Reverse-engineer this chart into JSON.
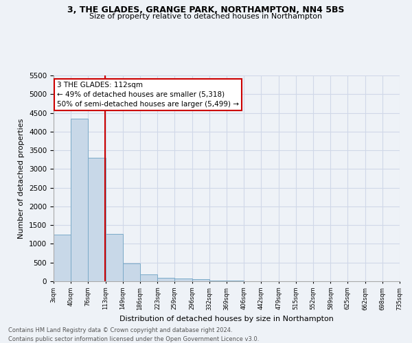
{
  "title1": "3, THE GLADES, GRANGE PARK, NORTHAMPTON, NN4 5BS",
  "title2": "Size of property relative to detached houses in Northampton",
  "xlabel": "Distribution of detached houses by size in Northampton",
  "ylabel": "Number of detached properties",
  "bin_edges": [
    3,
    40,
    76,
    113,
    149,
    186,
    223,
    259,
    296,
    332,
    369,
    406,
    442,
    479,
    515,
    552,
    589,
    625,
    662,
    698,
    735
  ],
  "bar_heights": [
    1250,
    4350,
    3300,
    1270,
    480,
    190,
    90,
    70,
    50,
    20,
    10,
    5,
    0,
    0,
    0,
    0,
    0,
    0,
    0,
    0
  ],
  "bar_color": "#c8d8e8",
  "bar_edge_color": "#7aaac8",
  "grid_color": "#d0d8e8",
  "property_size": 112,
  "vline_color": "#cc0000",
  "annotation_line1": "3 THE GLADES: 112sqm",
  "annotation_line2": "← 49% of detached houses are smaller (5,318)",
  "annotation_line3": "50% of semi-detached houses are larger (5,499) →",
  "annotation_box_color": "#ffffff",
  "annotation_border_color": "#cc0000",
  "ylim": [
    0,
    5500
  ],
  "yticks": [
    0,
    500,
    1000,
    1500,
    2000,
    2500,
    3000,
    3500,
    4000,
    4500,
    5000,
    5500
  ],
  "footnote1": "Contains HM Land Registry data © Crown copyright and database right 2024.",
  "footnote2": "Contains public sector information licensed under the Open Government Licence v3.0.",
  "bg_color": "#eef2f7"
}
